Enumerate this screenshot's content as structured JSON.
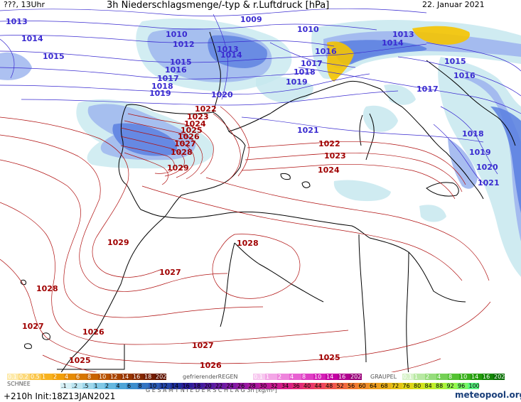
{
  "header": {
    "left": "???, 13Uhr",
    "title": "3h Niederschlagsmenge/-typ & r.Luftdruck [hPa]",
    "date": "22. Januar 2021"
  },
  "colors": {
    "isobar_low": "#3a2bd0",
    "isobar_high": "#b01010",
    "rain": "#5b7fe0",
    "rain_light": "#9fb6ee",
    "rain_pale": "#c7e8ef",
    "snow": "#f5c400",
    "coast": "#000000"
  },
  "isobar_labels_blue": [
    {
      "text": "1013"
    },
    {
      "text": "1009"
    },
    {
      "text": "1010"
    },
    {
      "text": "1013"
    },
    {
      "text": "1014"
    },
    {
      "text": "1010"
    },
    {
      "text": "1012"
    },
    {
      "text": "1013"
    },
    {
      "text": "1014"
    },
    {
      "text": "1015"
    },
    {
      "text": "1014"
    },
    {
      "text": "1016"
    },
    {
      "text": "1015"
    },
    {
      "text": "1016"
    },
    {
      "text": "1017"
    },
    {
      "text": "1018"
    },
    {
      "text": "1019"
    },
    {
      "text": "1017"
    },
    {
      "text": "1018"
    },
    {
      "text": "1015"
    },
    {
      "text": "1016"
    },
    {
      "text": "1019"
    },
    {
      "text": "1020"
    },
    {
      "text": "1017"
    },
    {
      "text": "1021"
    },
    {
      "text": "1018"
    },
    {
      "text": "1019"
    },
    {
      "text": "1020"
    },
    {
      "text": "1021"
    }
  ],
  "isobar_labels_red": [
    {
      "text": "1022"
    },
    {
      "text": "1023"
    },
    {
      "text": "1024"
    },
    {
      "text": "1025"
    },
    {
      "text": "1026"
    },
    {
      "text": "1027"
    },
    {
      "text": "1028"
    },
    {
      "text": "1029"
    },
    {
      "text": "1022"
    },
    {
      "text": "1023"
    },
    {
      "text": "1024"
    },
    {
      "text": "1029"
    },
    {
      "text": "1028"
    },
    {
      "text": "1027"
    },
    {
      "text": "1028"
    },
    {
      "text": "1027"
    },
    {
      "text": "1026"
    },
    {
      "text": "1027"
    },
    {
      "text": "1025"
    },
    {
      "text": "1026"
    },
    {
      "text": "1025"
    }
  ],
  "legend": {
    "snow_label": "SCHNEE",
    "snow_values": [
      "0.1",
      "0.2",
      "0.5",
      "1",
      "2",
      "4",
      "6",
      "8",
      "10",
      "12",
      "14",
      "16",
      "18",
      "2025+"
    ],
    "freezing_label": "gefrierenderREGEN",
    "freezing_values": [
      "0.1",
      "1",
      "2",
      "4",
      "8",
      "10",
      "14",
      "16",
      "2025+"
    ],
    "graupel_label": "GRAUPEL",
    "graupel_values": [
      "0.1",
      "1",
      "2",
      "4",
      "8",
      "10",
      "14",
      "16",
      "2025+"
    ],
    "total_label": "G E S A M T N I E D E R S C H L A G   3h   [kg/m²]",
    "total_values": [
      ".1",
      ".2",
      ".5",
      "1",
      "2",
      "4",
      "6",
      "8",
      "10",
      "12",
      "14",
      "16",
      "18",
      "20",
      "22",
      "24",
      "26",
      "28",
      "30",
      "32",
      "34",
      "36",
      "40",
      "44",
      "48",
      "52",
      "56",
      "60",
      "64",
      "68",
      "72",
      "76",
      "80",
      "84",
      "88",
      "92",
      "96",
      "100"
    ]
  },
  "footer": {
    "run": "+210h  Init:18Z13JAN2021",
    "brand": "meteopool.org"
  }
}
